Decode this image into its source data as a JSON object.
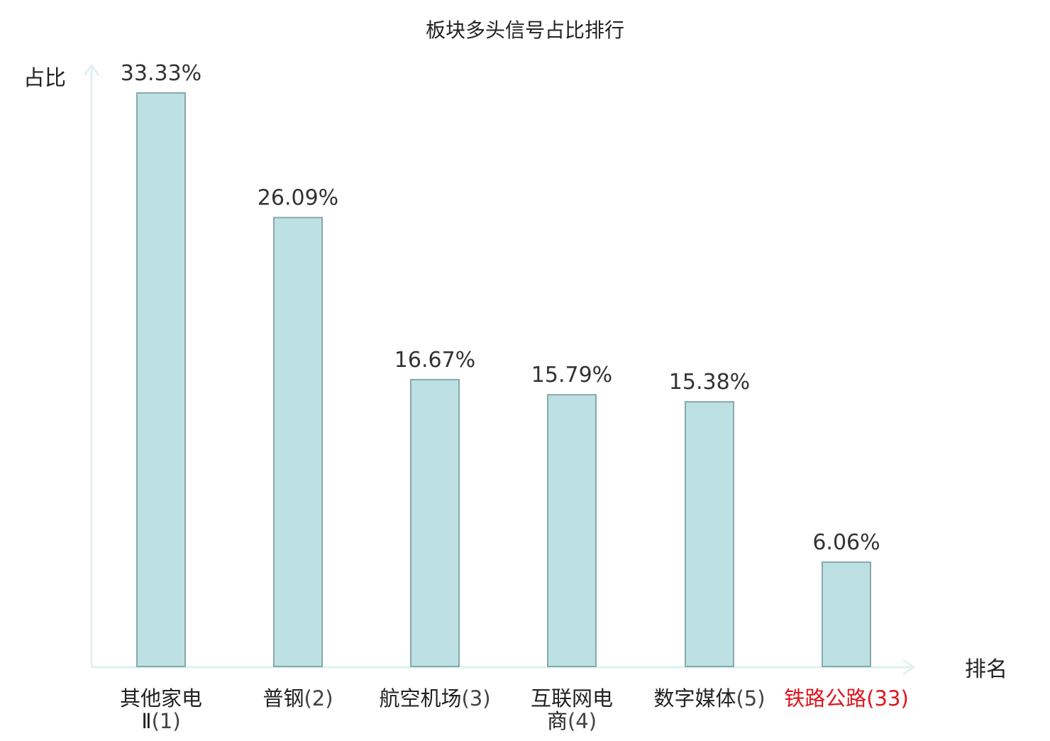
{
  "chart_data": {
    "type": "bar",
    "title": "板块多头信号占比排行",
    "xlabel": "排名",
    "ylabel": "占比",
    "ylim": [
      0,
      33.33
    ],
    "grid": false,
    "legend": "none",
    "categories": [
      {
        "name_lines": [
          "其他家电",
          "Ⅱ"
        ],
        "rank": "(1)",
        "highlight": false
      },
      {
        "name_lines": [
          "普钢"
        ],
        "rank": "(2)",
        "highlight": false
      },
      {
        "name_lines": [
          "航空机场"
        ],
        "rank": "(3)",
        "highlight": false
      },
      {
        "name_lines": [
          "互联网电",
          "商"
        ],
        "rank": "(4)",
        "highlight": false
      },
      {
        "name_lines": [
          "数字媒体"
        ],
        "rank": "(5)",
        "highlight": false
      },
      {
        "name_lines": [
          "铁路公路"
        ],
        "rank": "(33)",
        "highlight": true
      }
    ],
    "values": [
      33.33,
      26.09,
      16.67,
      15.79,
      15.38,
      6.06
    ],
    "value_labels": [
      "33.33%",
      "26.09%",
      "16.67%",
      "15.79%",
      "15.38%",
      "6.06%"
    ],
    "colors": {
      "bar_fill": "#bde0e3",
      "bar_stroke": "#86a9ab",
      "axis": "#dff2ef",
      "text": "#222222",
      "value_text": "#333333",
      "rank_text": "#444444",
      "highlight": "#e0141e"
    }
  }
}
